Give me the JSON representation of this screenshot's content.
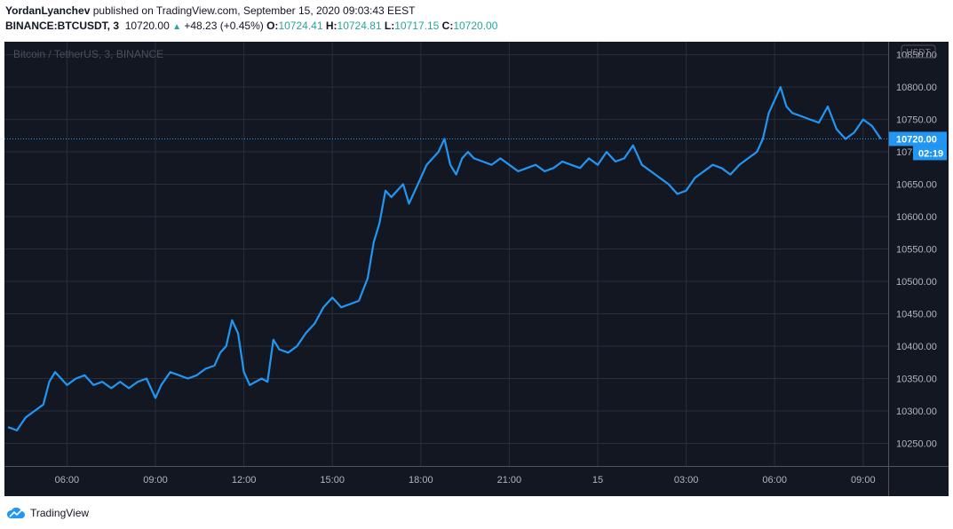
{
  "header": {
    "author": "YordanLyanchev",
    "published_text": "published on TradingView.com, September 15, 2020 09:03:43 EEST",
    "symbol": "BINANCE:BTCUSDT, 3",
    "last": "10720.00",
    "change": "+48.23 (+0.45%)",
    "o_label": "O:",
    "o": "10724.41",
    "h_label": "H:",
    "h": "10724.81",
    "l_label": "L:",
    "l": "10717.15",
    "c_label": "C:",
    "c": "10720.00"
  },
  "chart_data": {
    "type": "line",
    "title": "Bitcoin / TetherUS, 3, BINANCE",
    "currency": "USDT",
    "x_tick_labels": [
      "06:00",
      "09:00",
      "12:00",
      "15:00",
      "18:00",
      "21:00",
      "15",
      "03:00",
      "06:00",
      "09:00"
    ],
    "y_tick_labels": [
      "10850.00",
      "10800.00",
      "10750.00",
      "10700.00",
      "10650.00",
      "10600.00",
      "10550.00",
      "10500.00",
      "10450.00",
      "10400.00",
      "10350.00",
      "10300.00",
      "10250.00"
    ],
    "ylim": [
      10215,
      10870
    ],
    "time_range_hours": [
      4,
      33.6
    ],
    "series": [
      {
        "points": [
          [
            4.0,
            10275
          ],
          [
            4.3,
            10270
          ],
          [
            4.6,
            10290
          ],
          [
            4.9,
            10300
          ],
          [
            5.2,
            10310
          ],
          [
            5.4,
            10345
          ],
          [
            5.6,
            10360
          ],
          [
            5.8,
            10350
          ],
          [
            6.0,
            10340
          ],
          [
            6.3,
            10350
          ],
          [
            6.6,
            10355
          ],
          [
            6.9,
            10340
          ],
          [
            7.2,
            10345
          ],
          [
            7.5,
            10335
          ],
          [
            7.8,
            10345
          ],
          [
            8.1,
            10335
          ],
          [
            8.4,
            10345
          ],
          [
            8.7,
            10350
          ],
          [
            9.0,
            10320
          ],
          [
            9.2,
            10340
          ],
          [
            9.5,
            10360
          ],
          [
            9.8,
            10355
          ],
          [
            10.1,
            10350
          ],
          [
            10.4,
            10355
          ],
          [
            10.7,
            10365
          ],
          [
            11.0,
            10370
          ],
          [
            11.2,
            10390
          ],
          [
            11.4,
            10400
          ],
          [
            11.6,
            10440
          ],
          [
            11.8,
            10420
          ],
          [
            12.0,
            10360
          ],
          [
            12.2,
            10340
          ],
          [
            12.4,
            10345
          ],
          [
            12.6,
            10350
          ],
          [
            12.8,
            10345
          ],
          [
            13.0,
            10410
          ],
          [
            13.2,
            10395
          ],
          [
            13.5,
            10390
          ],
          [
            13.8,
            10400
          ],
          [
            14.1,
            10420
          ],
          [
            14.4,
            10435
          ],
          [
            14.7,
            10460
          ],
          [
            15.0,
            10475
          ],
          [
            15.3,
            10460
          ],
          [
            15.6,
            10465
          ],
          [
            15.9,
            10470
          ],
          [
            16.2,
            10505
          ],
          [
            16.4,
            10560
          ],
          [
            16.6,
            10590
          ],
          [
            16.8,
            10640
          ],
          [
            17.0,
            10630
          ],
          [
            17.2,
            10640
          ],
          [
            17.4,
            10650
          ],
          [
            17.6,
            10620
          ],
          [
            17.8,
            10640
          ],
          [
            18.0,
            10660
          ],
          [
            18.2,
            10680
          ],
          [
            18.4,
            10690
          ],
          [
            18.6,
            10700
          ],
          [
            18.8,
            10720
          ],
          [
            19.0,
            10680
          ],
          [
            19.2,
            10665
          ],
          [
            19.4,
            10690
          ],
          [
            19.6,
            10700
          ],
          [
            19.8,
            10690
          ],
          [
            20.1,
            10685
          ],
          [
            20.4,
            10680
          ],
          [
            20.7,
            10690
          ],
          [
            21.0,
            10680
          ],
          [
            21.3,
            10670
          ],
          [
            21.6,
            10675
          ],
          [
            21.9,
            10680
          ],
          [
            22.2,
            10670
          ],
          [
            22.5,
            10675
          ],
          [
            22.8,
            10685
          ],
          [
            23.1,
            10680
          ],
          [
            23.4,
            10675
          ],
          [
            23.7,
            10690
          ],
          [
            24.0,
            10680
          ],
          [
            24.3,
            10700
          ],
          [
            24.6,
            10685
          ],
          [
            24.9,
            10690
          ],
          [
            25.2,
            10710
          ],
          [
            25.5,
            10680
          ],
          [
            25.8,
            10670
          ],
          [
            26.1,
            10660
          ],
          [
            26.4,
            10650
          ],
          [
            26.7,
            10635
          ],
          [
            27.0,
            10640
          ],
          [
            27.3,
            10660
          ],
          [
            27.6,
            10670
          ],
          [
            27.9,
            10680
          ],
          [
            28.2,
            10675
          ],
          [
            28.5,
            10665
          ],
          [
            28.8,
            10680
          ],
          [
            29.1,
            10690
          ],
          [
            29.4,
            10700
          ],
          [
            29.6,
            10720
          ],
          [
            29.8,
            10760
          ],
          [
            30.0,
            10780
          ],
          [
            30.2,
            10800
          ],
          [
            30.4,
            10770
          ],
          [
            30.6,
            10760
          ],
          [
            30.9,
            10755
          ],
          [
            31.2,
            10750
          ],
          [
            31.5,
            10745
          ],
          [
            31.8,
            10770
          ],
          [
            32.1,
            10735
          ],
          [
            32.4,
            10720
          ],
          [
            32.7,
            10730
          ],
          [
            33.0,
            10750
          ],
          [
            33.3,
            10740
          ],
          [
            33.6,
            10720
          ]
        ]
      }
    ],
    "colors": {
      "background": "#131722",
      "line": "#2196f3",
      "grid": "#2a2e39",
      "text": "#b2b5be",
      "last_price_bg": "#2196f3"
    },
    "last_price_label": "10720.00",
    "countdown_label": "02:19",
    "grid": true
  },
  "footer": {
    "brand": "TradingView"
  }
}
